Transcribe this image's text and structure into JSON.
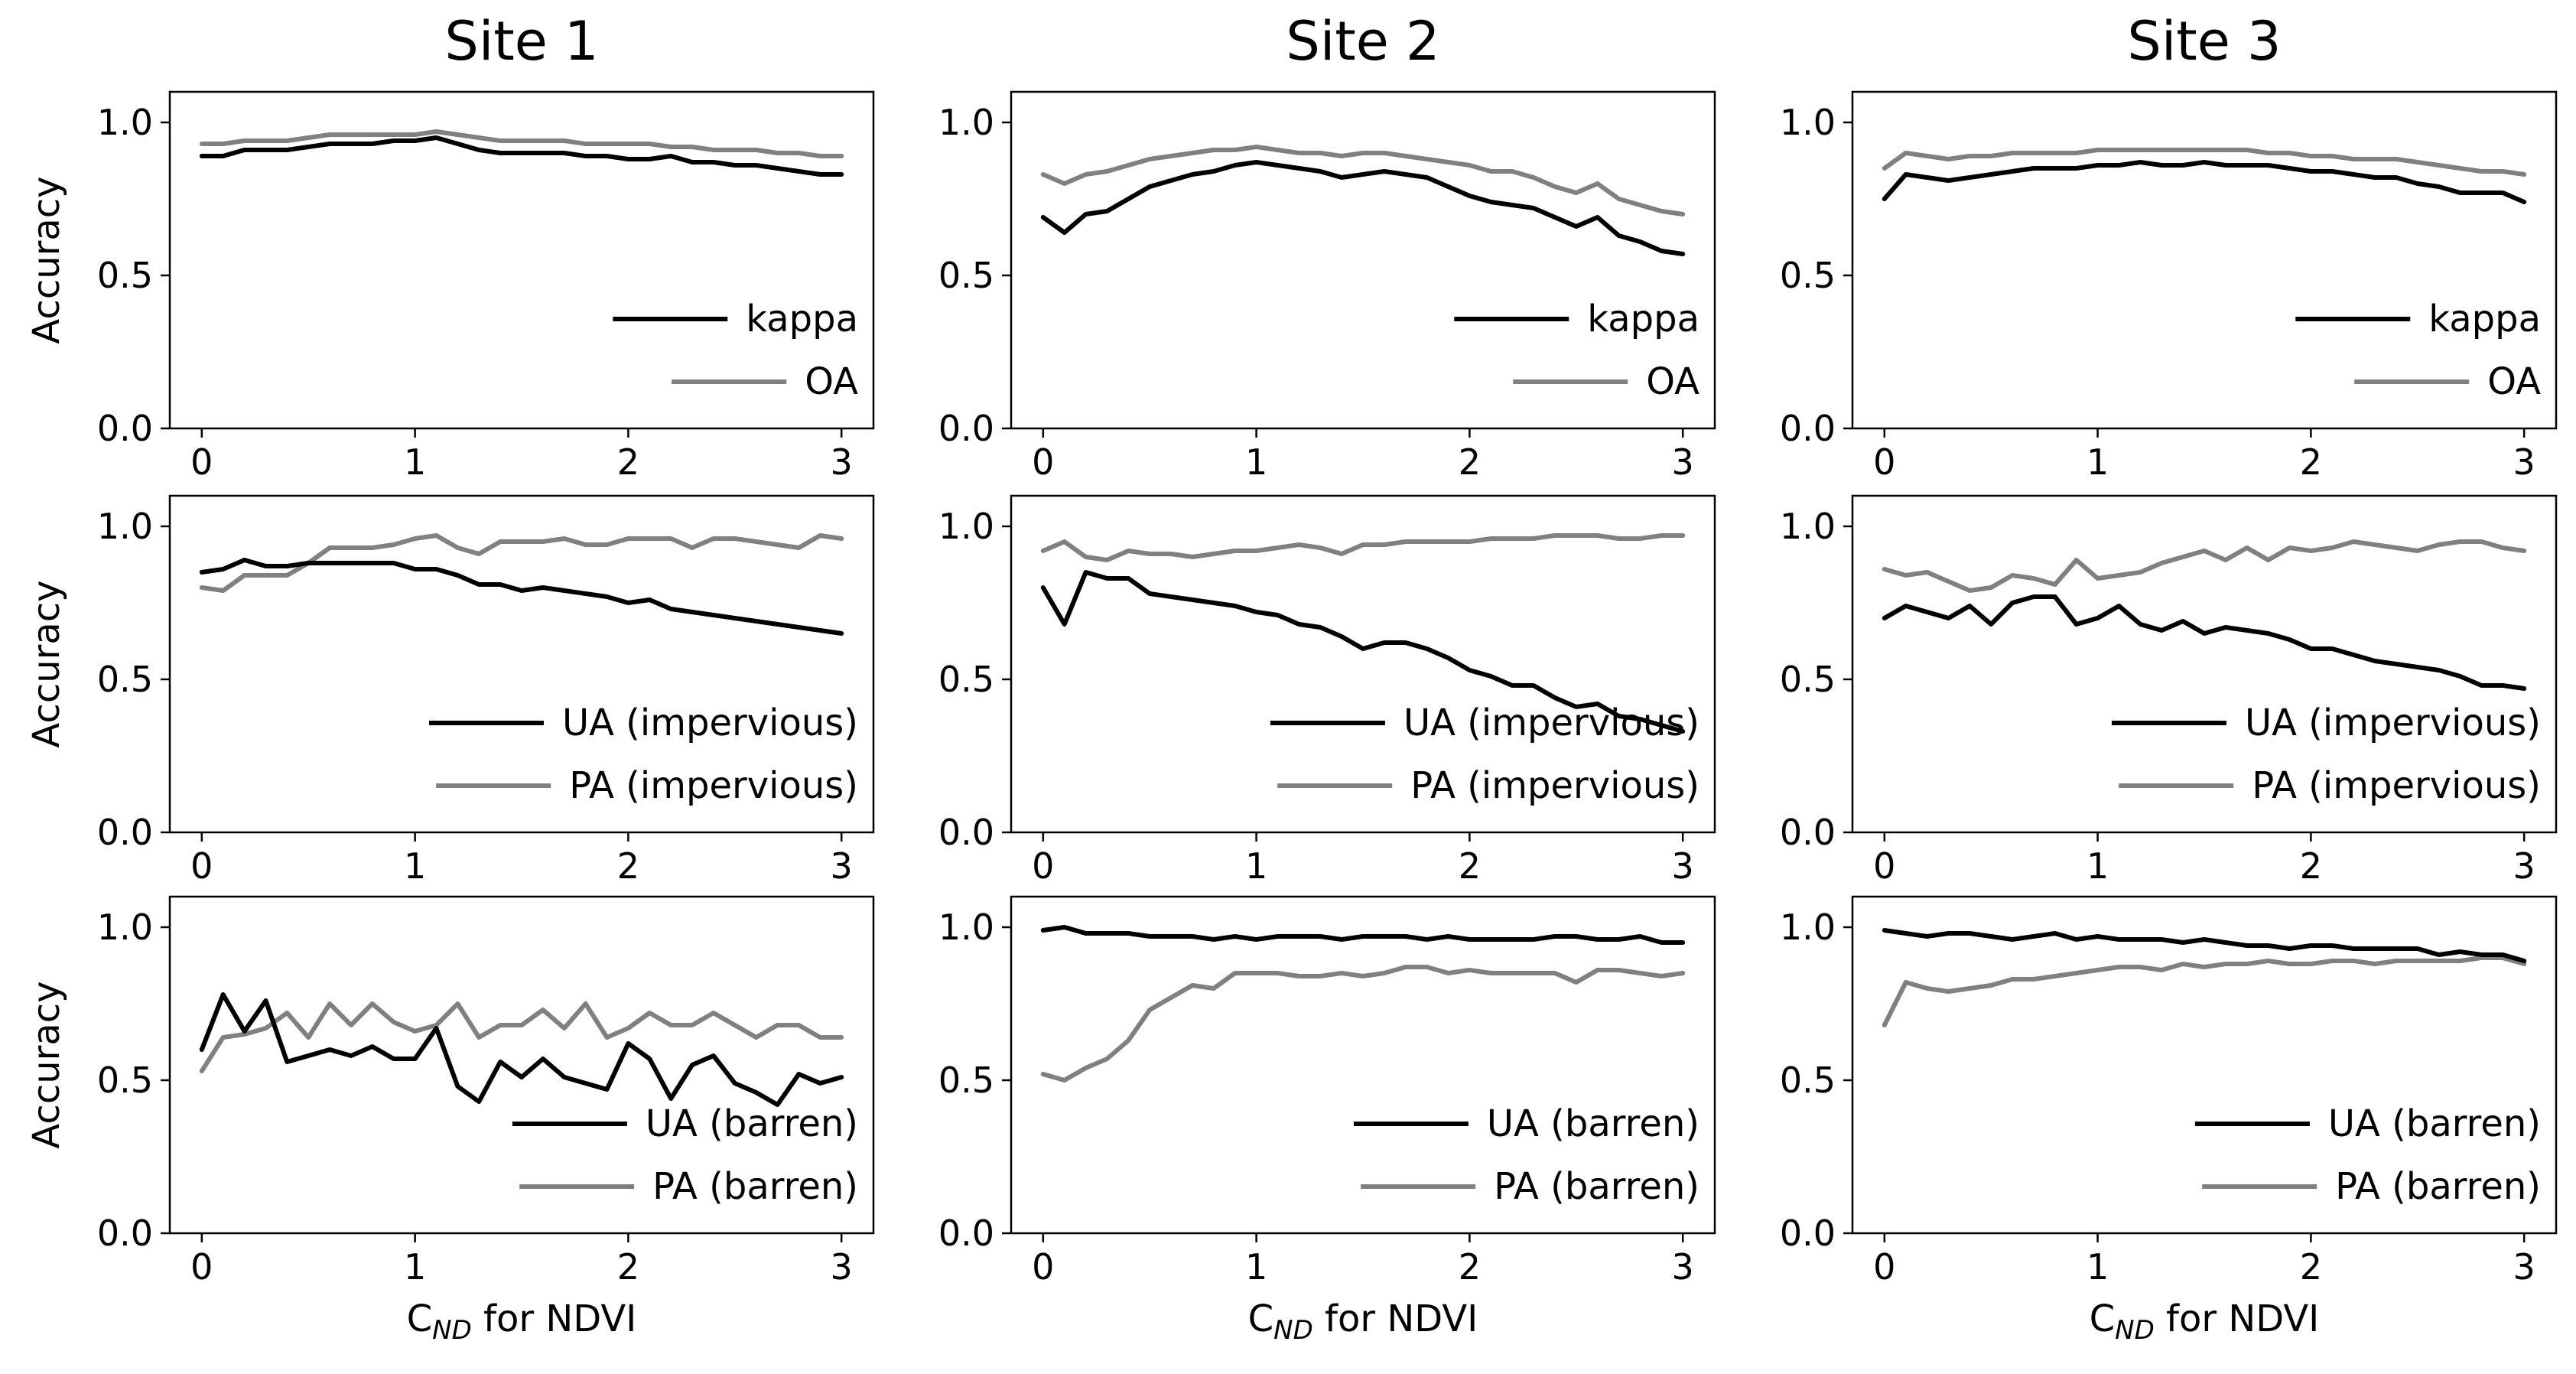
{
  "figure": {
    "columns": [
      "Site 1",
      "Site 2",
      "Site 3"
    ],
    "ylabel": "Accuracy",
    "xlabel_main": "C",
    "xlabel_sub": "ND",
    "xlabel_rest": " for NDVI"
  },
  "chart_data": {
    "type": "line",
    "x": [
      0,
      0.1,
      0.2,
      0.3,
      0.4,
      0.5,
      0.6,
      0.7,
      0.8,
      0.9,
      1.0,
      1.1,
      1.2,
      1.3,
      1.4,
      1.5,
      1.6,
      1.7,
      1.8,
      1.9,
      2.0,
      2.1,
      2.2,
      2.3,
      2.4,
      2.5,
      2.6,
      2.7,
      2.8,
      2.9,
      3.0
    ],
    "xlim": [
      -0.15,
      3.15
    ],
    "ylim": [
      0.0,
      1.1
    ],
    "xticks": [
      0,
      1,
      2,
      3
    ],
    "yticks": [
      0.0,
      0.5,
      1.0
    ],
    "xtick_labels": [
      "0",
      "1",
      "2",
      "3"
    ],
    "ytick_labels": [
      "0.0",
      "0.5",
      "1.0"
    ],
    "series_colors": {
      "dark": "#000000",
      "gray": "#808080"
    },
    "panels": [
      {
        "row": 0,
        "col": 0,
        "series": [
          {
            "name": "kappa",
            "color": "dark",
            "values": [
              0.89,
              0.89,
              0.91,
              0.91,
              0.91,
              0.92,
              0.93,
              0.93,
              0.93,
              0.94,
              0.94,
              0.95,
              0.93,
              0.91,
              0.9,
              0.9,
              0.9,
              0.9,
              0.89,
              0.89,
              0.88,
              0.88,
              0.89,
              0.87,
              0.87,
              0.86,
              0.86,
              0.85,
              0.84,
              0.83,
              0.83
            ]
          },
          {
            "name": "OA",
            "color": "gray",
            "values": [
              0.93,
              0.93,
              0.94,
              0.94,
              0.94,
              0.95,
              0.96,
              0.96,
              0.96,
              0.96,
              0.96,
              0.97,
              0.96,
              0.95,
              0.94,
              0.94,
              0.94,
              0.94,
              0.93,
              0.93,
              0.93,
              0.93,
              0.92,
              0.92,
              0.91,
              0.91,
              0.91,
              0.9,
              0.9,
              0.89,
              0.89
            ]
          }
        ]
      },
      {
        "row": 0,
        "col": 1,
        "series": [
          {
            "name": "kappa",
            "color": "dark",
            "values": [
              0.69,
              0.64,
              0.7,
              0.71,
              0.75,
              0.79,
              0.81,
              0.83,
              0.84,
              0.86,
              0.87,
              0.86,
              0.85,
              0.84,
              0.82,
              0.83,
              0.84,
              0.83,
              0.82,
              0.79,
              0.76,
              0.74,
              0.73,
              0.72,
              0.69,
              0.66,
              0.69,
              0.63,
              0.61,
              0.58,
              0.57
            ]
          },
          {
            "name": "OA",
            "color": "gray",
            "values": [
              0.83,
              0.8,
              0.83,
              0.84,
              0.86,
              0.88,
              0.89,
              0.9,
              0.91,
              0.91,
              0.92,
              0.91,
              0.9,
              0.9,
              0.89,
              0.9,
              0.9,
              0.89,
              0.88,
              0.87,
              0.86,
              0.84,
              0.84,
              0.82,
              0.79,
              0.77,
              0.8,
              0.75,
              0.73,
              0.71,
              0.7
            ]
          }
        ]
      },
      {
        "row": 0,
        "col": 2,
        "series": [
          {
            "name": "kappa",
            "color": "dark",
            "values": [
              0.75,
              0.83,
              0.82,
              0.81,
              0.82,
              0.83,
              0.84,
              0.85,
              0.85,
              0.85,
              0.86,
              0.86,
              0.87,
              0.86,
              0.86,
              0.87,
              0.86,
              0.86,
              0.86,
              0.85,
              0.84,
              0.84,
              0.83,
              0.82,
              0.82,
              0.8,
              0.79,
              0.77,
              0.77,
              0.77,
              0.74
            ]
          },
          {
            "name": "OA",
            "color": "gray",
            "values": [
              0.85,
              0.9,
              0.89,
              0.88,
              0.89,
              0.89,
              0.9,
              0.9,
              0.9,
              0.9,
              0.91,
              0.91,
              0.91,
              0.91,
              0.91,
              0.91,
              0.91,
              0.91,
              0.9,
              0.9,
              0.89,
              0.89,
              0.88,
              0.88,
              0.88,
              0.87,
              0.86,
              0.85,
              0.84,
              0.84,
              0.83
            ]
          }
        ]
      },
      {
        "row": 1,
        "col": 0,
        "series": [
          {
            "name": "UA (impervious)",
            "color": "dark",
            "values": [
              0.85,
              0.86,
              0.89,
              0.87,
              0.87,
              0.88,
              0.88,
              0.88,
              0.88,
              0.88,
              0.86,
              0.86,
              0.84,
              0.81,
              0.81,
              0.79,
              0.8,
              0.79,
              0.78,
              0.77,
              0.75,
              0.76,
              0.73,
              0.72,
              0.71,
              0.7,
              0.69,
              0.68,
              0.67,
              0.66,
              0.65
            ]
          },
          {
            "name": "PA (impervious)",
            "color": "gray",
            "values": [
              0.8,
              0.79,
              0.84,
              0.84,
              0.84,
              0.88,
              0.93,
              0.93,
              0.93,
              0.94,
              0.96,
              0.97,
              0.93,
              0.91,
              0.95,
              0.95,
              0.95,
              0.96,
              0.94,
              0.94,
              0.96,
              0.96,
              0.96,
              0.93,
              0.96,
              0.96,
              0.95,
              0.94,
              0.93,
              0.97,
              0.96
            ]
          }
        ]
      },
      {
        "row": 1,
        "col": 1,
        "series": [
          {
            "name": "UA (impervious)",
            "color": "dark",
            "values": [
              0.8,
              0.68,
              0.85,
              0.83,
              0.83,
              0.78,
              0.77,
              0.76,
              0.75,
              0.74,
              0.72,
              0.71,
              0.68,
              0.67,
              0.64,
              0.6,
              0.62,
              0.62,
              0.6,
              0.57,
              0.53,
              0.51,
              0.48,
              0.48,
              0.44,
              0.41,
              0.42,
              0.38,
              0.37,
              0.35,
              0.33
            ]
          },
          {
            "name": "PA (impervious)",
            "color": "gray",
            "values": [
              0.92,
              0.95,
              0.9,
              0.89,
              0.92,
              0.91,
              0.91,
              0.9,
              0.91,
              0.92,
              0.92,
              0.93,
              0.94,
              0.93,
              0.91,
              0.94,
              0.94,
              0.95,
              0.95,
              0.95,
              0.95,
              0.96,
              0.96,
              0.96,
              0.97,
              0.97,
              0.97,
              0.96,
              0.96,
              0.97,
              0.97
            ]
          }
        ]
      },
      {
        "row": 1,
        "col": 2,
        "series": [
          {
            "name": "UA (impervious)",
            "color": "dark",
            "values": [
              0.7,
              0.74,
              0.72,
              0.7,
              0.74,
              0.68,
              0.75,
              0.77,
              0.77,
              0.68,
              0.7,
              0.74,
              0.68,
              0.66,
              0.69,
              0.65,
              0.67,
              0.66,
              0.65,
              0.63,
              0.6,
              0.6,
              0.58,
              0.56,
              0.55,
              0.54,
              0.53,
              0.51,
              0.48,
              0.48,
              0.47
            ]
          },
          {
            "name": "PA (impervious)",
            "color": "gray",
            "values": [
              0.86,
              0.84,
              0.85,
              0.82,
              0.79,
              0.8,
              0.84,
              0.83,
              0.81,
              0.89,
              0.83,
              0.84,
              0.85,
              0.88,
              0.9,
              0.92,
              0.89,
              0.93,
              0.89,
              0.93,
              0.92,
              0.93,
              0.95,
              0.94,
              0.93,
              0.92,
              0.94,
              0.95,
              0.95,
              0.93,
              0.92
            ]
          }
        ]
      },
      {
        "row": 2,
        "col": 0,
        "series": [
          {
            "name": "UA (barren)",
            "color": "dark",
            "values": [
              0.6,
              0.78,
              0.66,
              0.76,
              0.56,
              0.58,
              0.6,
              0.58,
              0.61,
              0.57,
              0.57,
              0.67,
              0.48,
              0.43,
              0.56,
              0.51,
              0.57,
              0.51,
              0.49,
              0.47,
              0.62,
              0.57,
              0.44,
              0.55,
              0.58,
              0.49,
              0.46,
              0.42,
              0.52,
              0.49,
              0.51
            ]
          },
          {
            "name": "PA (barren)",
            "color": "gray",
            "values": [
              0.53,
              0.64,
              0.65,
              0.67,
              0.72,
              0.64,
              0.75,
              0.68,
              0.75,
              0.69,
              0.66,
              0.68,
              0.75,
              0.64,
              0.68,
              0.68,
              0.73,
              0.67,
              0.75,
              0.64,
              0.67,
              0.72,
              0.68,
              0.68,
              0.72,
              0.68,
              0.64,
              0.68,
              0.68,
              0.64,
              0.64
            ]
          }
        ]
      },
      {
        "row": 2,
        "col": 1,
        "series": [
          {
            "name": "UA (barren)",
            "color": "dark",
            "values": [
              0.99,
              1.0,
              0.98,
              0.98,
              0.98,
              0.97,
              0.97,
              0.97,
              0.96,
              0.97,
              0.96,
              0.97,
              0.97,
              0.97,
              0.96,
              0.97,
              0.97,
              0.97,
              0.96,
              0.97,
              0.96,
              0.96,
              0.96,
              0.96,
              0.97,
              0.97,
              0.96,
              0.96,
              0.97,
              0.95,
              0.95
            ]
          },
          {
            "name": "PA (barren)",
            "color": "gray",
            "values": [
              0.52,
              0.5,
              0.54,
              0.57,
              0.63,
              0.73,
              0.77,
              0.81,
              0.8,
              0.85,
              0.85,
              0.85,
              0.84,
              0.84,
              0.85,
              0.84,
              0.85,
              0.87,
              0.87,
              0.85,
              0.86,
              0.85,
              0.85,
              0.85,
              0.85,
              0.82,
              0.86,
              0.86,
              0.85,
              0.84,
              0.85
            ]
          }
        ]
      },
      {
        "row": 2,
        "col": 2,
        "series": [
          {
            "name": "UA (barren)",
            "color": "dark",
            "values": [
              0.99,
              0.98,
              0.97,
              0.98,
              0.98,
              0.97,
              0.96,
              0.97,
              0.98,
              0.96,
              0.97,
              0.96,
              0.96,
              0.96,
              0.95,
              0.96,
              0.95,
              0.94,
              0.94,
              0.93,
              0.94,
              0.94,
              0.93,
              0.93,
              0.93,
              0.93,
              0.91,
              0.92,
              0.91,
              0.91,
              0.89
            ]
          },
          {
            "name": "PA (barren)",
            "color": "gray",
            "values": [
              0.68,
              0.82,
              0.8,
              0.79,
              0.8,
              0.81,
              0.83,
              0.83,
              0.84,
              0.85,
              0.86,
              0.87,
              0.87,
              0.86,
              0.88,
              0.87,
              0.88,
              0.88,
              0.89,
              0.88,
              0.88,
              0.89,
              0.89,
              0.88,
              0.89,
              0.89,
              0.89,
              0.89,
              0.9,
              0.9,
              0.88
            ]
          }
        ]
      }
    ]
  }
}
